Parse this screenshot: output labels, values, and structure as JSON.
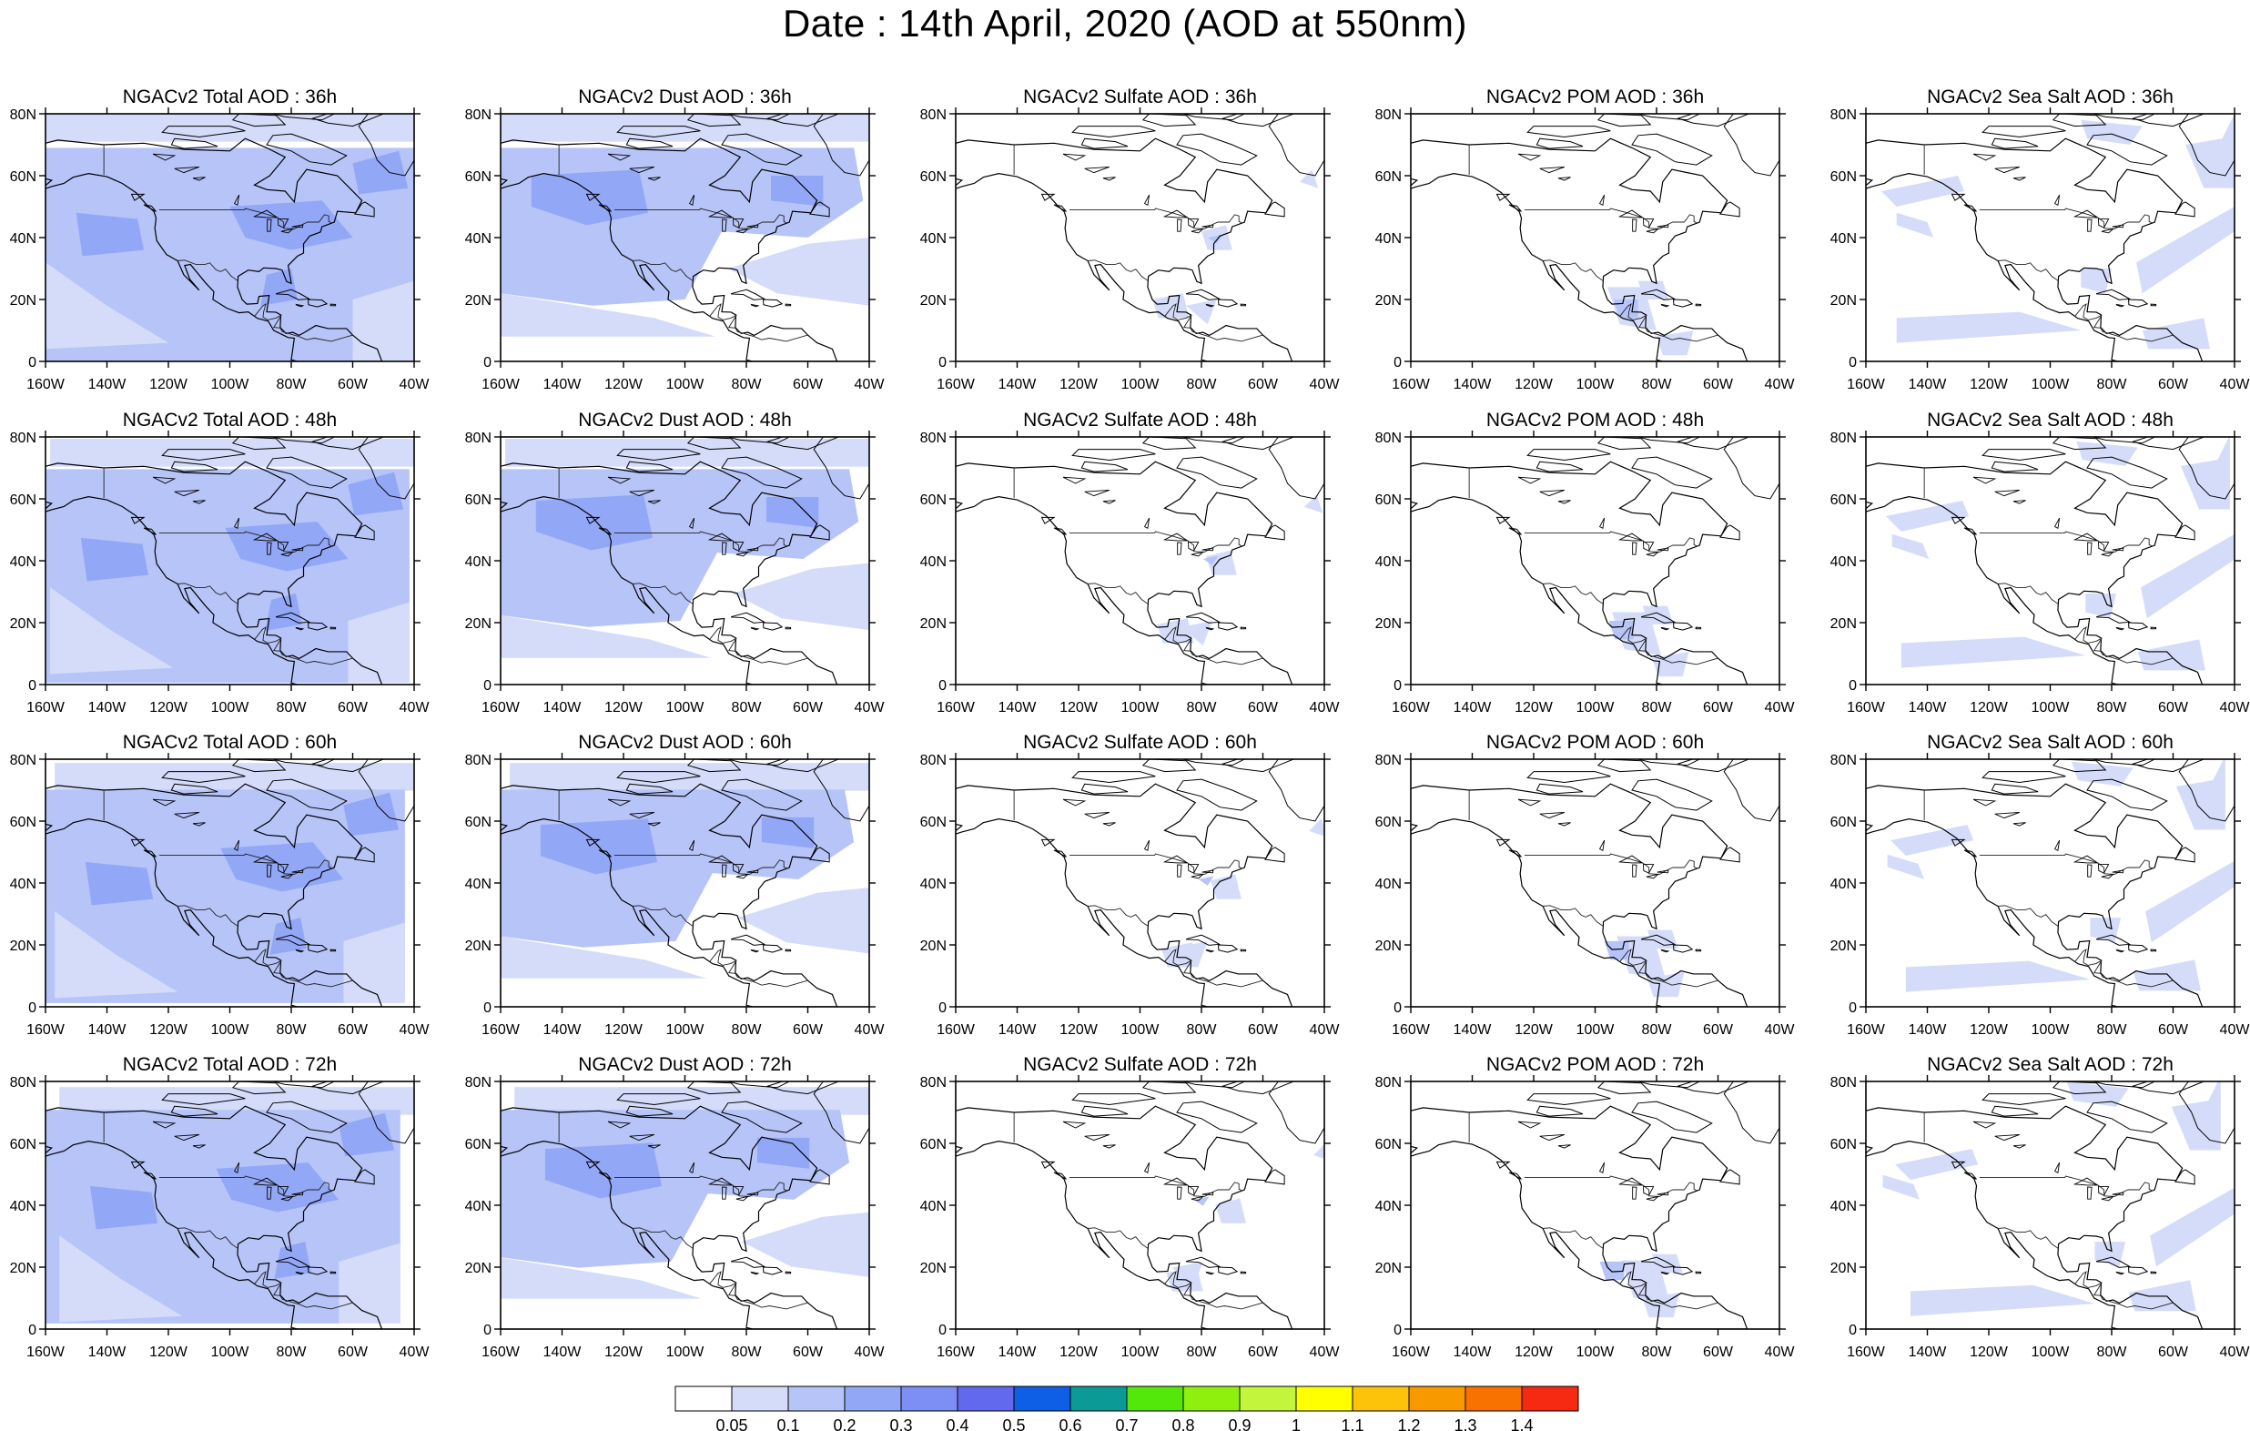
{
  "title": "Date : 14th April, 2020 (AOD at 550nm)",
  "panel_titles": [
    [
      "NGACv2 Total AOD : 36h",
      "NGACv2 Dust AOD : 36h",
      "NGACv2 Sulfate AOD : 36h",
      "NGACv2 POM AOD : 36h",
      "NGACv2 Sea Salt AOD : 36h"
    ],
    [
      "NGACv2 Total AOD : 48h",
      "NGACv2 Dust AOD : 48h",
      "NGACv2 Sulfate AOD : 48h",
      "NGACv2 POM AOD : 48h",
      "NGACv2 Sea Salt AOD : 48h"
    ],
    [
      "NGACv2 Total AOD : 60h",
      "NGACv2 Dust AOD : 60h",
      "NGACv2 Sulfate AOD : 60h",
      "NGACv2 POM AOD : 60h",
      "NGACv2 Sea Salt AOD : 60h"
    ],
    [
      "NGACv2 Total AOD : 72h",
      "NGACv2 Dust AOD : 72h",
      "NGACv2 Sulfate AOD : 72h",
      "NGACv2 POM AOD : 72h",
      "NGACv2 Sea Salt  AOD : 72h"
    ]
  ],
  "lat_ticks": [
    "80N",
    "60N",
    "40N",
    "20N",
    "0"
  ],
  "lon_ticks": [
    "160W",
    "140W",
    "120W",
    "100W",
    "80W",
    "60W",
    "40W"
  ],
  "colorbar": {
    "colors": [
      "#ffffff",
      "#d4dcfa",
      "#b6c4f8",
      "#93a7f7",
      "#7d8ef5",
      "#6269ee",
      "#0f5fe6",
      "#0c9a97",
      "#54e80a",
      "#8ef00c",
      "#c3f53d",
      "#ffff00",
      "#fdc20a",
      "#f99900",
      "#f87201",
      "#f62a13"
    ],
    "labels": [
      "0.05",
      "0.1",
      "0.2",
      "0.3",
      "0.4",
      "0.5",
      "0.6",
      "0.7",
      "0.8",
      "0.9",
      "1",
      "1.1",
      "1.2",
      "1.3",
      "1.4"
    ]
  }
}
